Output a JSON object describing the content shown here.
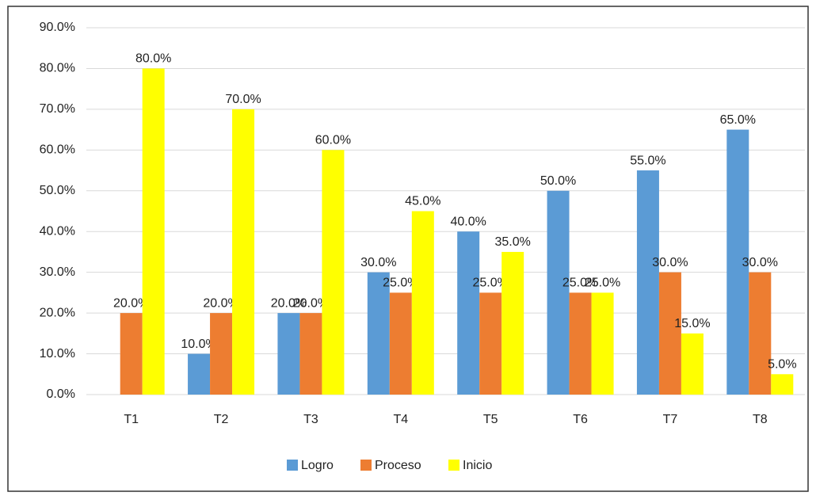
{
  "chart_data": {
    "type": "bar",
    "categories": [
      "T1",
      "T2",
      "T3",
      "T4",
      "T5",
      "T6",
      "T7",
      "T8"
    ],
    "series": [
      {
        "name": "Logro",
        "color": "#5b9bd5",
        "values": [
          0,
          10,
          20,
          30,
          40,
          50,
          55,
          65
        ],
        "value_labels": [
          null,
          "10.0%",
          "20.0%",
          "30.0%",
          "40.0%",
          "50.0%",
          "55.0%",
          "65.0%"
        ]
      },
      {
        "name": "Proceso",
        "color": "#ed7d31",
        "values": [
          20,
          20,
          20,
          25,
          25,
          25,
          30,
          30
        ],
        "value_labels": [
          "20.0%",
          "20.0%",
          "20.0%",
          "25.0%",
          "25.0%",
          "25.0%",
          "30.0%",
          "30.0%"
        ]
      },
      {
        "name": "Inicio",
        "color": "#ffff00",
        "values": [
          80,
          70,
          60,
          45,
          35,
          25,
          15,
          5
        ],
        "value_labels": [
          "80.0%",
          "70.0%",
          "60.0%",
          "45.0%",
          "35.0%",
          "25.0%",
          "15.0%",
          "5.0%"
        ]
      }
    ],
    "ylim": [
      0,
      90
    ],
    "yticks": [
      {
        "value": 0,
        "label": "0.0%"
      },
      {
        "value": 10,
        "label": "10.0%"
      },
      {
        "value": 20,
        "label": "20.0%"
      },
      {
        "value": 30,
        "label": "30.0%"
      },
      {
        "value": 40,
        "label": "40.0%"
      },
      {
        "value": 50,
        "label": "50.0%"
      },
      {
        "value": 60,
        "label": "60.0%"
      },
      {
        "value": 70,
        "label": "70.0%"
      },
      {
        "value": 80,
        "label": "80.0%"
      },
      {
        "value": 90,
        "label": "90.0%"
      }
    ],
    "grid": true,
    "legend": "bottom"
  }
}
